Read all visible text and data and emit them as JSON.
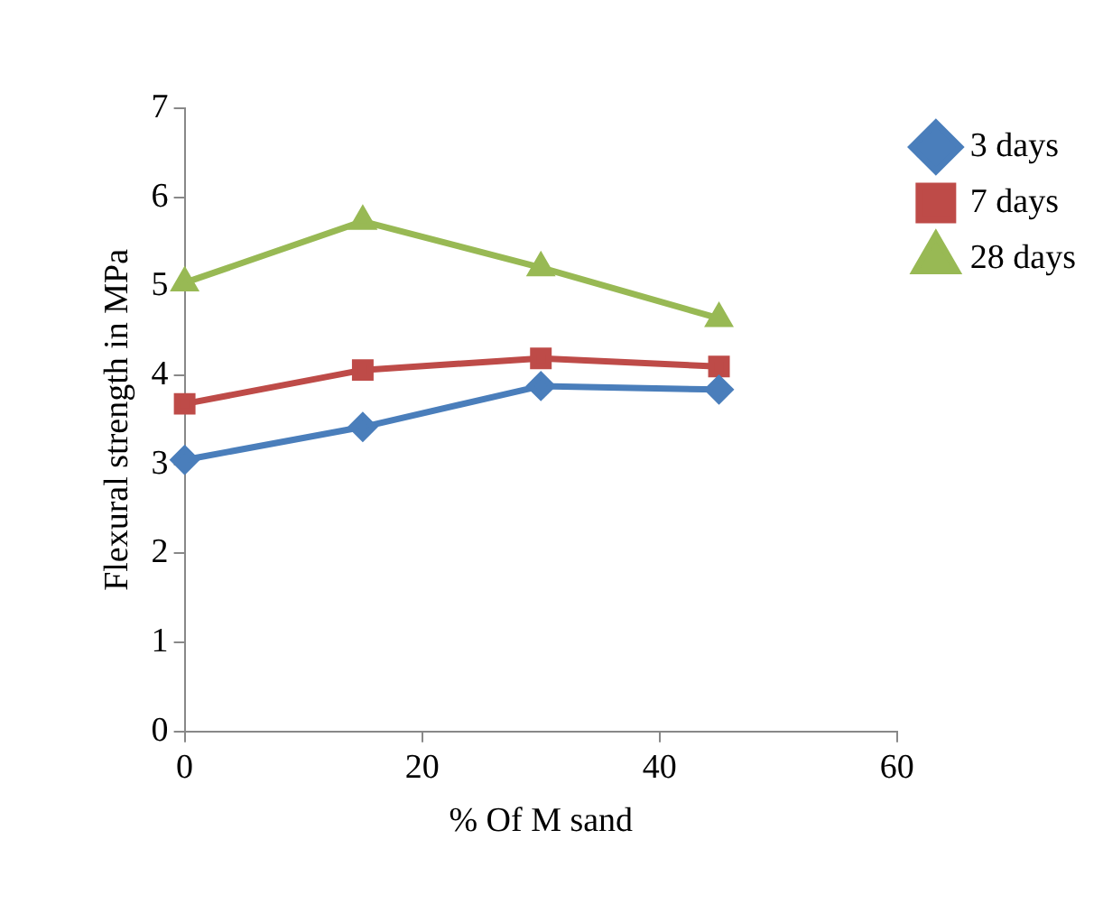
{
  "chart_data": {
    "type": "line",
    "xlabel": "% Of M sand",
    "ylabel": "Flexural strength in MPa",
    "x": [
      0,
      15,
      30,
      45
    ],
    "xlim": [
      0,
      60
    ],
    "xticks": [
      0,
      20,
      40,
      60
    ],
    "ylim": [
      0,
      7
    ],
    "yticks": [
      0,
      1,
      2,
      3,
      4,
      5,
      6,
      7
    ],
    "grid": false,
    "legend": "top right",
    "line_style": "solid",
    "series": [
      {
        "name": "3 days",
        "color": "#4a7ebb",
        "marker": "diamond",
        "values": [
          3.05,
          3.42,
          3.88,
          3.84
        ]
      },
      {
        "name": "7 days",
        "color": "#be4b48",
        "marker": "square",
        "values": [
          3.68,
          4.06,
          4.19,
          4.1
        ]
      },
      {
        "name": "28 days",
        "color": "#98b954",
        "marker": "triangle",
        "values": [
          5.04,
          5.73,
          5.21,
          4.64
        ]
      }
    ]
  }
}
